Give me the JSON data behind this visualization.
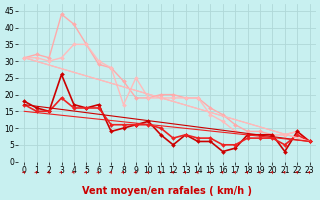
{
  "xlabel": "Vent moyen/en rafales ( km/h )",
  "background_color": "#c8f0f0",
  "grid_color": "#b0d8d8",
  "x_ticks": [
    0,
    1,
    2,
    3,
    4,
    5,
    6,
    7,
    8,
    9,
    10,
    11,
    12,
    13,
    14,
    15,
    16,
    17,
    18,
    19,
    20,
    21,
    22,
    23
  ],
  "ylim": [
    0,
    47
  ],
  "yticks": [
    0,
    5,
    10,
    15,
    20,
    25,
    30,
    35,
    40,
    45
  ],
  "lines": [
    {
      "x": [
        0,
        1,
        2,
        3,
        4,
        5,
        6,
        7,
        8,
        9,
        10,
        11,
        12,
        13,
        14,
        15,
        16,
        17,
        18,
        19,
        20,
        21,
        22,
        23
      ],
      "y": [
        31,
        32,
        31,
        44,
        41,
        35,
        29,
        28,
        24,
        19,
        19,
        20,
        20,
        19,
        19,
        16,
        14,
        11,
        9,
        9,
        8,
        8,
        9,
        6
      ],
      "color": "#ffaaaa",
      "lw": 1.0,
      "marker": "D",
      "ms": 2.0
    },
    {
      "x": [
        0,
        1,
        2,
        3,
        4,
        5,
        6,
        7,
        8,
        9,
        10,
        11,
        12,
        13,
        14,
        15,
        16,
        17,
        18,
        19,
        20,
        21,
        22,
        23
      ],
      "y": [
        31,
        31,
        30,
        31,
        35,
        35,
        30,
        28,
        17,
        25,
        19,
        19,
        19,
        19,
        19,
        14,
        12,
        9,
        8,
        8,
        8,
        8,
        9,
        6
      ],
      "color": "#ffbbbb",
      "lw": 1.0,
      "marker": "D",
      "ms": 2.0
    },
    {
      "x": [
        0,
        1,
        2,
        3,
        4,
        5,
        6,
        7,
        8,
        9,
        10,
        11,
        12,
        13,
        14,
        15,
        16,
        17,
        18,
        19,
        20,
        21,
        22,
        23
      ],
      "y": [
        18,
        16,
        15,
        26,
        17,
        16,
        17,
        9,
        10,
        11,
        12,
        8,
        5,
        8,
        6,
        6,
        3,
        4,
        8,
        8,
        8,
        3,
        9,
        6
      ],
      "color": "#cc0000",
      "lw": 1.2,
      "marker": "D",
      "ms": 2.0
    },
    {
      "x": [
        0,
        1,
        2,
        3,
        4,
        5,
        6,
        7,
        8,
        9,
        10,
        11,
        12,
        13,
        14,
        15,
        16,
        17,
        18,
        19,
        20,
        21,
        22,
        23
      ],
      "y": [
        17,
        15,
        15,
        19,
        16,
        16,
        16,
        11,
        11,
        11,
        11,
        10,
        7,
        8,
        7,
        7,
        5,
        5,
        7,
        7,
        7,
        5,
        8,
        6
      ],
      "color": "#ee2222",
      "lw": 1.2,
      "marker": "D",
      "ms": 2.0
    },
    {
      "x": [
        0,
        23
      ],
      "y": [
        31,
        6
      ],
      "color": "#ffaaaa",
      "lw": 0.8,
      "marker": null,
      "ms": 0
    },
    {
      "x": [
        0,
        23
      ],
      "y": [
        31,
        6
      ],
      "color": "#ffbbbb",
      "lw": 0.8,
      "marker": null,
      "ms": 0
    },
    {
      "x": [
        0,
        23
      ],
      "y": [
        17,
        6
      ],
      "color": "#cc0000",
      "lw": 0.8,
      "marker": null,
      "ms": 0
    },
    {
      "x": [
        0,
        23
      ],
      "y": [
        15,
        6
      ],
      "color": "#ee2222",
      "lw": 0.8,
      "marker": null,
      "ms": 0
    }
  ],
  "tick_fontsize": 5.5,
  "xlabel_fontsize": 7,
  "xlabel_color": "#cc0000"
}
